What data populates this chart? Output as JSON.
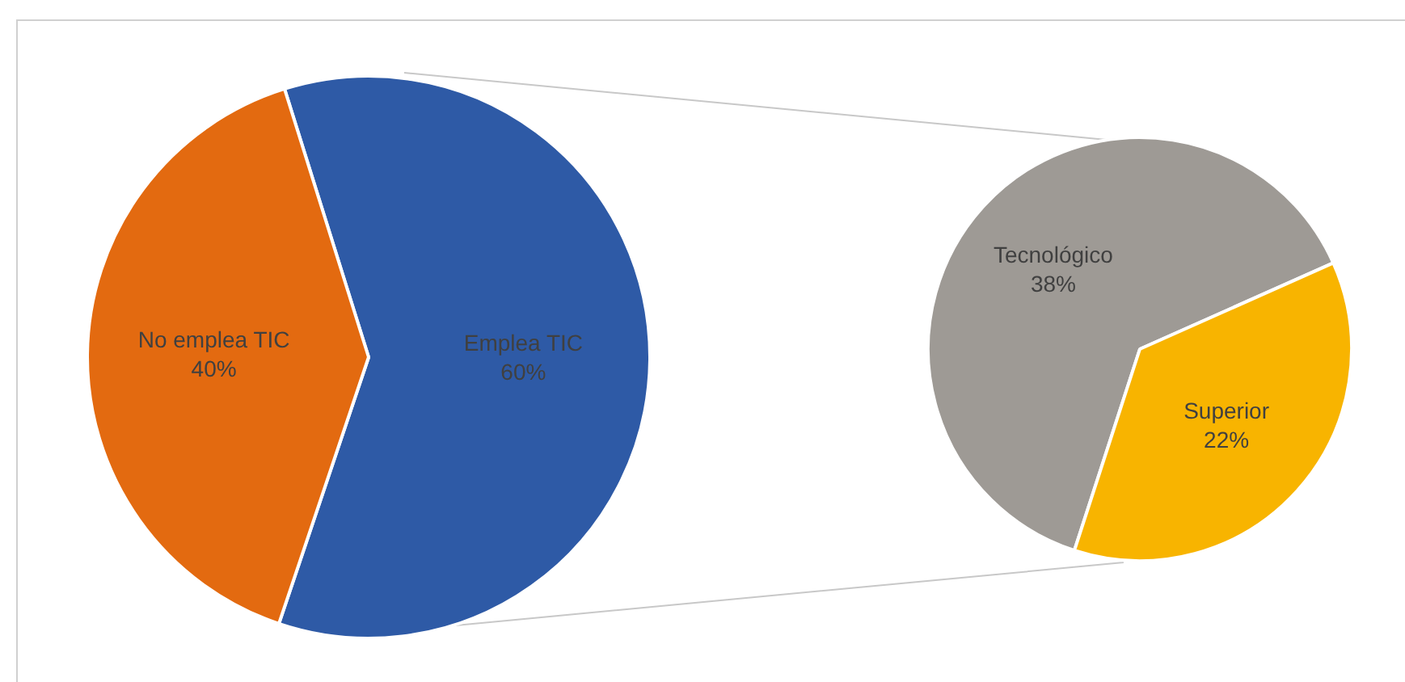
{
  "chart_data": [
    {
      "type": "pie",
      "categories": [
        "Emplea TIC",
        "No emplea TIC"
      ],
      "values": [
        60,
        40
      ],
      "colors": [
        "#2e5aa6",
        "#e36a10"
      ],
      "value_labels": [
        "60%",
        "40%"
      ]
    },
    {
      "type": "pie",
      "categories": [
        "Tecnológico",
        "Superior"
      ],
      "values": [
        38,
        22
      ],
      "colors": [
        "#9e9a95",
        "#f8b400"
      ],
      "value_labels": [
        "38%",
        "22%"
      ]
    }
  ]
}
